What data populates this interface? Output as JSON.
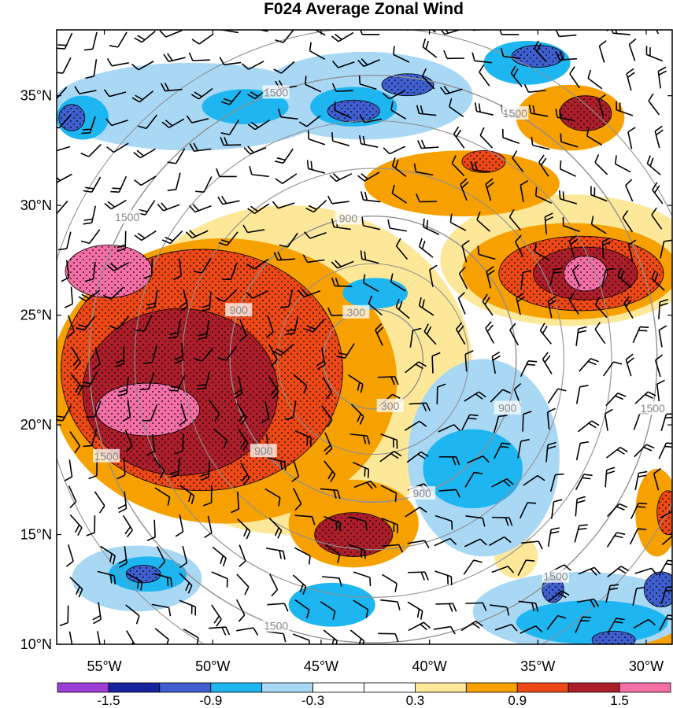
{
  "figure": {
    "title": "F024 Average Zonal Wind"
  },
  "map": {
    "lon_range": [
      -57.2,
      -28.8
    ],
    "lat_range": [
      10,
      38
    ],
    "lat_ticks": [
      {
        "value": 10,
        "label": "10°N"
      },
      {
        "value": 15,
        "label": "15°N"
      },
      {
        "value": 20,
        "label": "20°N"
      },
      {
        "value": 25,
        "label": "25°N"
      },
      {
        "value": 30,
        "label": "30°N"
      },
      {
        "value": 35,
        "label": "35°N"
      }
    ],
    "lon_ticks": [
      {
        "value": -55,
        "label": "55°W"
      },
      {
        "value": -50,
        "label": "50°W"
      },
      {
        "value": -45,
        "label": "45°W"
      },
      {
        "value": -40,
        "label": "40°W"
      },
      {
        "value": -35,
        "label": "35°W"
      },
      {
        "value": -30,
        "label": "30°W"
      }
    ],
    "range_rings": {
      "center": {
        "lon": -42.6,
        "lat": 23.0
      },
      "color": "#909090",
      "rings": [
        {
          "value": 300,
          "radius_deg": 2.3,
          "labels": [
            "300",
            "300"
          ]
        },
        {
          "value": 900,
          "radius_deg": 6.6,
          "labels": [
            "900",
            "900",
            "900",
            "900",
            "900"
          ]
        },
        {
          "value": 1500,
          "radius_deg": 13.1,
          "labels": [
            "1500",
            "1500",
            "1500",
            "1500",
            "1500",
            "1500",
            "1500"
          ]
        }
      ],
      "extra_rings_deg": [
        4.4,
        8.8,
        11.0,
        15.3
      ]
    },
    "shaded_regions": [
      {
        "level": 0.3,
        "color": "#fde89a",
        "lon": -46.5,
        "lat": 22.5,
        "rx": 8.5,
        "ry": 7.5
      },
      {
        "level": 0.9,
        "color": "#f7a100",
        "lon": -49.5,
        "lat": 22.0,
        "rx": 8.0,
        "ry": 6.5
      },
      {
        "level": 1.2,
        "color": "#ee4816",
        "lon": -50.5,
        "lat": 22.5,
        "rx": 6.5,
        "ry": 5.5
      },
      {
        "level": 1.5,
        "color": "#ac1f2a",
        "lon": -51.5,
        "lat": 21.5,
        "rx": 4.5,
        "ry": 3.8
      },
      {
        "level": 1.8,
        "color": "#f46fa6",
        "lon": -53.0,
        "lat": 20.7,
        "rx": 2.4,
        "ry": 1.2
      },
      {
        "level": 1.8,
        "color": "#f46fa6",
        "lon": -54.8,
        "lat": 27.0,
        "rx": 2.0,
        "ry": 1.2
      },
      {
        "level": 0.9,
        "color": "#f7a100",
        "lon": -43.5,
        "lat": 15.5,
        "rx": 3.0,
        "ry": 2.0
      },
      {
        "level": 1.5,
        "color": "#ac1f2a",
        "lon": -43.5,
        "lat": 15.0,
        "rx": 1.8,
        "ry": 1.0
      },
      {
        "level": 0.3,
        "color": "#fde89a",
        "lon": -33.5,
        "lat": 27.5,
        "rx": 6.0,
        "ry": 3.0
      },
      {
        "level": 0.9,
        "color": "#f7a100",
        "lon": -33.5,
        "lat": 27.0,
        "rx": 5.0,
        "ry": 2.2
      },
      {
        "level": 1.2,
        "color": "#ee4816",
        "lon": -33.0,
        "lat": 26.9,
        "rx": 3.8,
        "ry": 1.7
      },
      {
        "level": 1.5,
        "color": "#ac1f2a",
        "lon": -32.8,
        "lat": 26.9,
        "rx": 2.4,
        "ry": 1.2
      },
      {
        "level": 1.8,
        "color": "#f46fa6",
        "lon": -32.8,
        "lat": 26.9,
        "rx": 1.0,
        "ry": 0.8
      },
      {
        "level": 0.9,
        "color": "#f7a100",
        "lon": -38.5,
        "lat": 31.0,
        "rx": 4.5,
        "ry": 1.5
      },
      {
        "level": 0.9,
        "color": "#f7a100",
        "lon": -33.5,
        "lat": 34.0,
        "rx": 2.5,
        "ry": 1.5
      },
      {
        "level": 1.5,
        "color": "#ac1f2a",
        "lon": -32.8,
        "lat": 34.2,
        "rx": 1.2,
        "ry": 0.8
      },
      {
        "level": 1.2,
        "color": "#ee4816",
        "lon": -37.5,
        "lat": 32.0,
        "rx": 1.0,
        "ry": 0.5
      },
      {
        "level": 0.3,
        "color": "#fde89a",
        "lon": -36.0,
        "lat": 14.0,
        "rx": 1.0,
        "ry": 1.0
      },
      {
        "level": 0.9,
        "color": "#f7a100",
        "lon": -29.5,
        "lat": 16.0,
        "rx": 1.0,
        "ry": 2.0
      },
      {
        "level": 1.2,
        "color": "#ee4816",
        "lon": -29.0,
        "lat": 16.0,
        "rx": 0.5,
        "ry": 1.0
      },
      {
        "level": 0.9,
        "color": "#f7a100",
        "lon": -29.5,
        "lat": 10.5,
        "rx": 1.5,
        "ry": 1.0
      },
      {
        "level": -0.3,
        "color": "#a9d8f5",
        "lon": -51.0,
        "lat": 34.5,
        "rx": 6.5,
        "ry": 2.0
      },
      {
        "level": -0.3,
        "color": "#a9d8f5",
        "lon": -43.0,
        "lat": 35.0,
        "rx": 5.0,
        "ry": 2.0
      },
      {
        "level": -0.3,
        "color": "#a9d8f5",
        "lon": -37.5,
        "lat": 18.5,
        "rx": 3.5,
        "ry": 4.5
      },
      {
        "level": -0.6,
        "color": "#1eb6f0",
        "lon": -38.0,
        "lat": 18.0,
        "rx": 2.3,
        "ry": 1.8
      },
      {
        "level": -0.3,
        "color": "#a9d8f5",
        "lon": -33.0,
        "lat": 11.5,
        "rx": 5.0,
        "ry": 1.8
      },
      {
        "level": -0.6,
        "color": "#1eb6f0",
        "lon": -32.5,
        "lat": 11.0,
        "rx": 3.5,
        "ry": 1.0
      },
      {
        "level": -0.3,
        "color": "#a9d8f5",
        "lon": -53.5,
        "lat": 13.0,
        "rx": 3.0,
        "ry": 1.5
      },
      {
        "level": -0.6,
        "color": "#1eb6f0",
        "lon": -53.0,
        "lat": 13.2,
        "rx": 1.8,
        "ry": 0.8
      },
      {
        "level": -0.6,
        "color": "#1eb6f0",
        "lon": -44.5,
        "lat": 11.8,
        "rx": 2.0,
        "ry": 1.0
      },
      {
        "level": -0.6,
        "color": "#1eb6f0",
        "lon": -42.5,
        "lat": 26.0,
        "rx": 1.5,
        "ry": 0.7
      },
      {
        "level": -0.6,
        "color": "#1eb6f0",
        "lon": -56.0,
        "lat": 34.0,
        "rx": 1.2,
        "ry": 1.0
      },
      {
        "level": -0.6,
        "color": "#1eb6f0",
        "lon": -48.5,
        "lat": 34.5,
        "rx": 2.0,
        "ry": 0.8
      },
      {
        "level": -0.6,
        "color": "#1eb6f0",
        "lon": -43.5,
        "lat": 34.5,
        "rx": 2.0,
        "ry": 0.9
      },
      {
        "level": -0.6,
        "color": "#1eb6f0",
        "lon": -35.5,
        "lat": 36.5,
        "rx": 2.0,
        "ry": 1.0
      },
      {
        "level": -1.2,
        "color": "#3f5fd0",
        "lon": -43.5,
        "lat": 34.3,
        "rx": 1.2,
        "ry": 0.5
      },
      {
        "level": -1.2,
        "color": "#3f5fd0",
        "lon": -41.0,
        "lat": 35.5,
        "rx": 1.2,
        "ry": 0.5
      },
      {
        "level": -1.2,
        "color": "#3f5fd0",
        "lon": -35.0,
        "lat": 36.8,
        "rx": 1.2,
        "ry": 0.5
      },
      {
        "level": -1.2,
        "color": "#3f5fd0",
        "lon": -56.5,
        "lat": 34.0,
        "rx": 0.6,
        "ry": 0.6
      },
      {
        "level": -1.2,
        "color": "#3f5fd0",
        "lon": -53.2,
        "lat": 13.2,
        "rx": 0.8,
        "ry": 0.4
      },
      {
        "level": -1.2,
        "color": "#3f5fd0",
        "lon": -31.5,
        "lat": 10.2,
        "rx": 1.0,
        "ry": 0.4
      },
      {
        "level": -1.2,
        "color": "#3f5fd0",
        "lon": -34.3,
        "lat": 12.5,
        "rx": 0.5,
        "ry": 0.6
      },
      {
        "level": -1.2,
        "color": "#3f5fd0",
        "lon": -29.3,
        "lat": 12.5,
        "rx": 0.8,
        "ry": 0.8
      }
    ],
    "wind_barbs": {
      "spacing_deg": 1.3,
      "color": "#000000"
    }
  },
  "colorbar": {
    "colors": [
      "#9c3fd6",
      "#1a239e",
      "#3f5fd0",
      "#1eb6f0",
      "#a9d8f5",
      "#ffffff",
      "#ffffff",
      "#fde89a",
      "#f7a100",
      "#ee4816",
      "#ac1f2a",
      "#f46fa6"
    ],
    "labels": [
      "-1.5",
      "-0.9",
      "-0.3",
      "0.3",
      "0.9",
      "1.5"
    ]
  }
}
